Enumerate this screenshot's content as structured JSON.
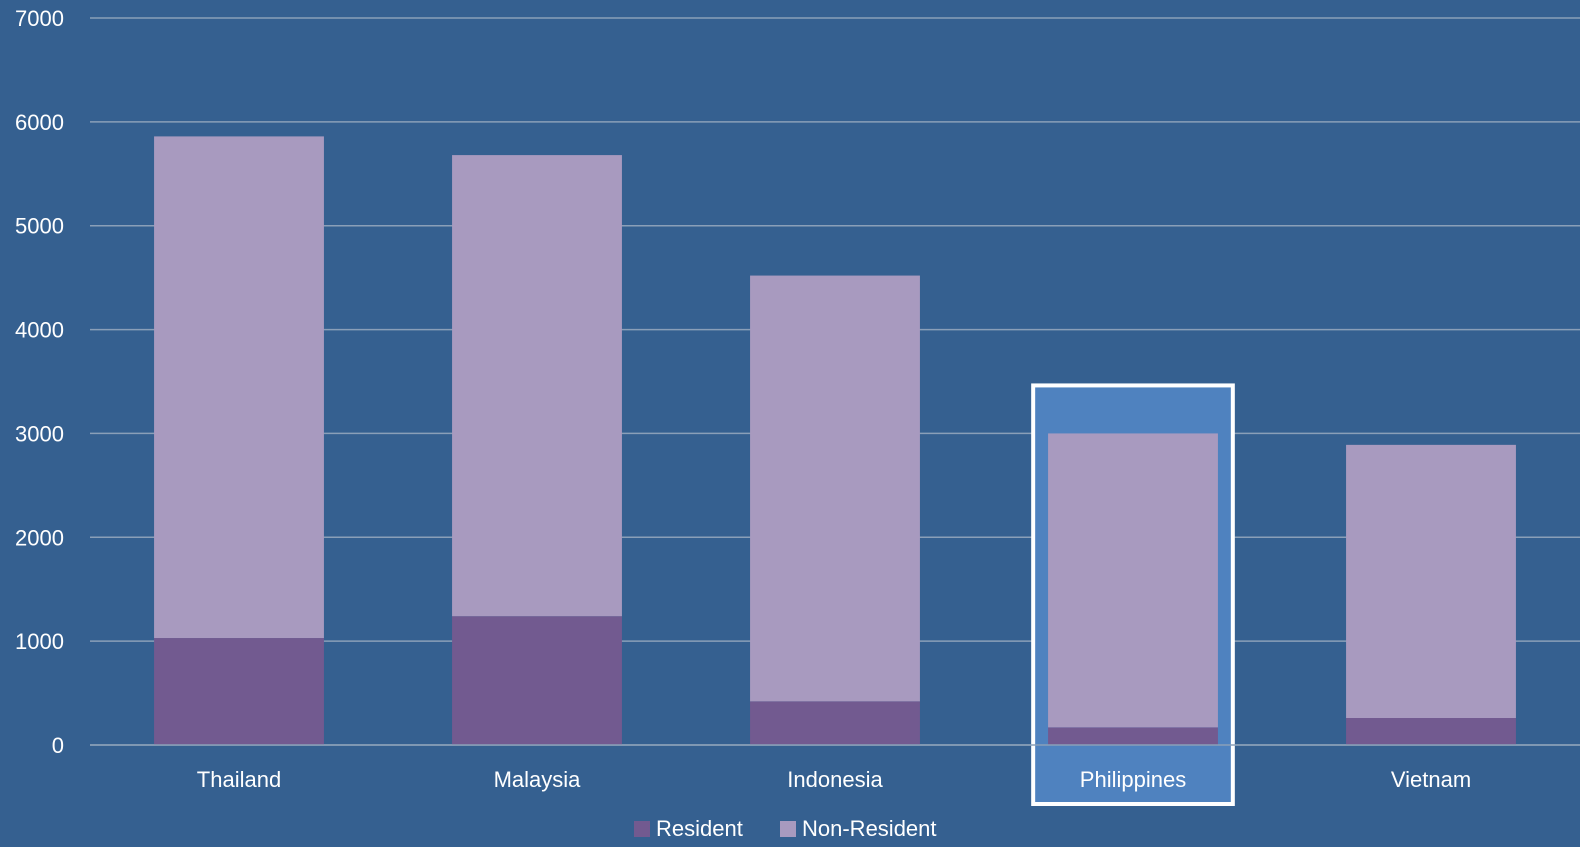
{
  "chart_data": {
    "type": "bar",
    "stacked": true,
    "categories": [
      "Thailand",
      "Malaysia",
      "Indonesia",
      "Philippines",
      "Vietnam"
    ],
    "series": [
      {
        "name": "Resident",
        "values": [
          1030,
          1240,
          420,
          170,
          260
        ],
        "color": "#725a90"
      },
      {
        "name": "Non-Resident",
        "values": [
          4830,
          4440,
          4100,
          2830,
          2630
        ],
        "color": "#a89abf"
      }
    ],
    "yticks": [
      0,
      1000,
      2000,
      3000,
      4000,
      5000,
      6000,
      7000
    ],
    "ylim": [
      0,
      7000
    ],
    "grid": true,
    "legend": "bottom",
    "highlighted_category": "Philippines",
    "colors": {
      "background": "#356090",
      "gridline": "#8a9fb8",
      "highlight_fill": "#4f82bf",
      "highlight_border": "#ffffff",
      "text": "#ffffff"
    }
  }
}
